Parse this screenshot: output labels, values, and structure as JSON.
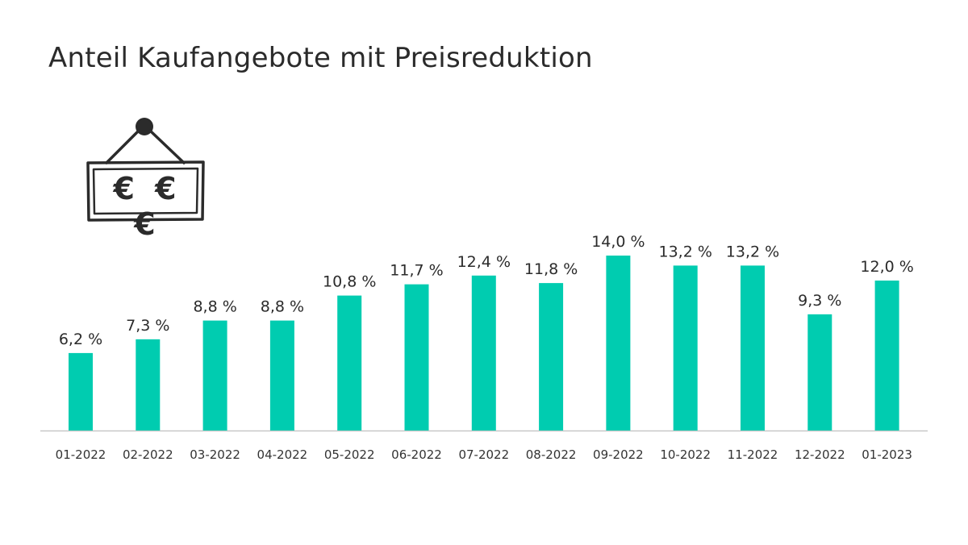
{
  "title": "Anteil Kaufangebote mit Preisreduktion",
  "sign": {
    "text": "€ € €",
    "icon": "price-sign-icon"
  },
  "colors": {
    "bar": "#00CCB0",
    "axis": "#c8c8c8",
    "text": "#333333"
  },
  "chart_data": {
    "type": "bar",
    "title": "Anteil Kaufangebote mit Preisreduktion",
    "xlabel": "",
    "ylabel": "",
    "ylim": [
      0,
      16
    ],
    "grid": false,
    "categories": [
      "01-2022",
      "02-2022",
      "03-2022",
      "04-2022",
      "05-2022",
      "06-2022",
      "07-2022",
      "08-2022",
      "09-2022",
      "10-2022",
      "11-2022",
      "12-2022",
      "01-2023"
    ],
    "values": [
      6.2,
      7.3,
      8.8,
      8.8,
      10.8,
      11.7,
      12.4,
      11.8,
      14.0,
      13.2,
      13.2,
      9.3,
      12.0
    ],
    "labels": [
      "6,2 %",
      "7,3 %",
      "8,8 %",
      "8,8 %",
      "10,8 %",
      "11,7 %",
      "12,4 %",
      "11,8 %",
      "14,0 %",
      "13,2 %",
      "13,2 %",
      "9,3 %",
      "12,0 %"
    ]
  }
}
